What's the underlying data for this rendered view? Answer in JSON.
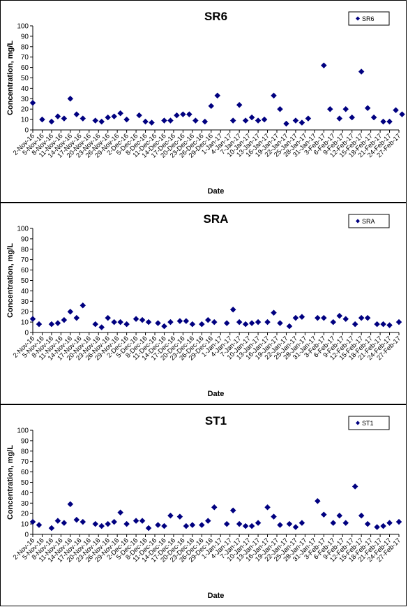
{
  "chart_data": [
    {
      "type": "scatter",
      "title": "SR6",
      "xlabel": "Date",
      "ylabel": "Concentration, mg/L",
      "ylim": [
        0,
        100
      ],
      "yticks": [
        0,
        10,
        20,
        30,
        40,
        50,
        60,
        70,
        80,
        90,
        100
      ],
      "grid": false,
      "legend_position": "top-right",
      "marker_color": "#000080",
      "series": [
        {
          "name": "SR6",
          "x": [
            "2-Nov-16",
            "5-Nov-16",
            "8-Nov-16",
            "10-Nov-16",
            "12-Nov-16",
            "14-Nov-16",
            "16-Nov-16",
            "18-Nov-16",
            "22-Nov-16",
            "24-Nov-16",
            "26-Nov-16",
            "28-Nov-16",
            "30-Nov-16",
            "2-Dec-16",
            "6-Dec-16",
            "8-Dec-16",
            "10-Dec-16",
            "14-Dec-16",
            "16-Dec-16",
            "18-Dec-16",
            "20-Dec-16",
            "22-Dec-16",
            "24-Dec-16",
            "27-Dec-16",
            "29-Dec-16",
            "31-Dec-16",
            "5-Jan-17",
            "7-Jan-17",
            "9-Jan-17",
            "11-Jan-17",
            "13-Jan-17",
            "15-Jan-17",
            "18-Jan-17",
            "20-Jan-17",
            "22-Jan-17",
            "25-Jan-17",
            "27-Jan-17",
            "29-Jan-17",
            "3-Feb-17",
            "5-Feb-17",
            "8-Feb-17",
            "10-Feb-17",
            "12-Feb-17",
            "15-Feb-17",
            "17-Feb-17",
            "19-Feb-17",
            "22-Feb-17",
            "24-Feb-17",
            "26-Feb-17",
            "28-Feb-17"
          ],
          "values": [
            26,
            10,
            8,
            13,
            11,
            30,
            15,
            11,
            9,
            8,
            12,
            13,
            16,
            10,
            14,
            8,
            7,
            9,
            9,
            14,
            15,
            15,
            9,
            8,
            23,
            33,
            9,
            24,
            9,
            12,
            9,
            10,
            33,
            20,
            6,
            9,
            7,
            11,
            62,
            20,
            11,
            20,
            12,
            56,
            21,
            12,
            8,
            8,
            19,
            15
          ]
        }
      ]
    },
    {
      "type": "scatter",
      "title": "SRA",
      "xlabel": "Date",
      "ylabel": "Concentration, mg/L",
      "ylim": [
        0,
        100
      ],
      "yticks": [
        0,
        10,
        20,
        30,
        40,
        50,
        60,
        70,
        80,
        90,
        100
      ],
      "grid": false,
      "legend_position": "top-right",
      "marker_color": "#000080",
      "series": [
        {
          "name": "SRA",
          "x": [
            "2-Nov-16",
            "4-Nov-16",
            "8-Nov-16",
            "10-Nov-16",
            "12-Nov-16",
            "14-Nov-16",
            "16-Nov-16",
            "18-Nov-16",
            "22-Nov-16",
            "24-Nov-16",
            "26-Nov-16",
            "28-Nov-16",
            "30-Nov-16",
            "2-Dec-16",
            "5-Dec-16",
            "7-Dec-16",
            "9-Dec-16",
            "12-Dec-16",
            "14-Dec-16",
            "16-Dec-16",
            "19-Dec-16",
            "21-Dec-16",
            "23-Dec-16",
            "26-Dec-16",
            "28-Dec-16",
            "30-Dec-16",
            "3-Jan-17",
            "5-Jan-17",
            "7-Jan-17",
            "9-Jan-17",
            "11-Jan-17",
            "13-Jan-17",
            "16-Jan-17",
            "18-Jan-17",
            "20-Jan-17",
            "23-Jan-17",
            "25-Jan-17",
            "27-Jan-17",
            "1-Feb-17",
            "3-Feb-17",
            "6-Feb-17",
            "8-Feb-17",
            "10-Feb-17",
            "13-Feb-17",
            "15-Feb-17",
            "17-Feb-17",
            "20-Feb-17",
            "22-Feb-17",
            "24-Feb-17",
            "27-Feb-17"
          ],
          "values": [
            13,
            8,
            8,
            9,
            12,
            20,
            14,
            26,
            8,
            5,
            14,
            10,
            10,
            8,
            13,
            12,
            10,
            9,
            6,
            10,
            11,
            11,
            8,
            8,
            12,
            10,
            9,
            22,
            10,
            8,
            9,
            10,
            10,
            19,
            9,
            6,
            14,
            15,
            14,
            14,
            10,
            16,
            13,
            8,
            14,
            14,
            8,
            8,
            7,
            10
          ]
        }
      ]
    },
    {
      "type": "scatter",
      "title": "ST1",
      "xlabel": "Date",
      "ylabel": "Concentration, mg/L",
      "ylim": [
        0,
        100
      ],
      "yticks": [
        0,
        10,
        20,
        30,
        40,
        50,
        60,
        70,
        80,
        90,
        100
      ],
      "grid": false,
      "legend_position": "top-right",
      "marker_color": "#000080",
      "series": [
        {
          "name": "ST1",
          "x": [
            "2-Nov-16",
            "4-Nov-16",
            "8-Nov-16",
            "10-Nov-16",
            "12-Nov-16",
            "14-Nov-16",
            "16-Nov-16",
            "18-Nov-16",
            "22-Nov-16",
            "24-Nov-16",
            "26-Nov-16",
            "28-Nov-16",
            "30-Nov-16",
            "2-Dec-16",
            "5-Dec-16",
            "7-Dec-16",
            "9-Dec-16",
            "12-Dec-16",
            "14-Dec-16",
            "16-Dec-16",
            "19-Dec-16",
            "21-Dec-16",
            "23-Dec-16",
            "26-Dec-16",
            "28-Dec-16",
            "30-Dec-16",
            "3-Jan-17",
            "5-Jan-17",
            "7-Jan-17",
            "9-Jan-17",
            "11-Jan-17",
            "13-Jan-17",
            "16-Jan-17",
            "18-Jan-17",
            "20-Jan-17",
            "23-Jan-17",
            "25-Jan-17",
            "27-Jan-17",
            "1-Feb-17",
            "3-Feb-17",
            "6-Feb-17",
            "8-Feb-17",
            "10-Feb-17",
            "13-Feb-17",
            "15-Feb-17",
            "17-Feb-17",
            "20-Feb-17",
            "22-Feb-17",
            "24-Feb-17",
            "27-Feb-17"
          ],
          "values": [
            12,
            9,
            6,
            13,
            11,
            29,
            14,
            12,
            10,
            8,
            10,
            12,
            21,
            10,
            13,
            13,
            6,
            9,
            8,
            18,
            17,
            8,
            9,
            9,
            13,
            26,
            10,
            23,
            10,
            8,
            8,
            11,
            26,
            17,
            9,
            10,
            7,
            11,
            32,
            19,
            11,
            18,
            11,
            46,
            18,
            10,
            7,
            8,
            11,
            12
          ]
        }
      ]
    }
  ],
  "x_axis": {
    "tick_labels": [
      "2-Nov-16",
      "5-Nov-16",
      "8-Nov-16",
      "11-Nov-16",
      "14-Nov-16",
      "17-Nov-16",
      "20-Nov-16",
      "23-Nov-16",
      "26-Nov-16",
      "29-Nov-16",
      "2-Dec-16",
      "5-Dec-16",
      "8-Dec-16",
      "11-Dec-16",
      "14-Dec-16",
      "17-Dec-16",
      "20-Dec-16",
      "23-Dec-16",
      "26-Dec-16",
      "29-Dec-16",
      "1-Jan-17",
      "4-Jan-17",
      "7-Jan-17",
      "10-Jan-17",
      "13-Jan-17",
      "16-Jan-17",
      "19-Jan-17",
      "22-Jan-17",
      "25-Jan-17",
      "28-Jan-17",
      "31-Jan-17",
      "3-Feb-17",
      "6-Feb-17",
      "9-Feb-17",
      "12-Feb-17",
      "15-Feb-17",
      "18-Feb-17",
      "21-Feb-17",
      "24-Feb-17",
      "27-Feb-17"
    ]
  }
}
